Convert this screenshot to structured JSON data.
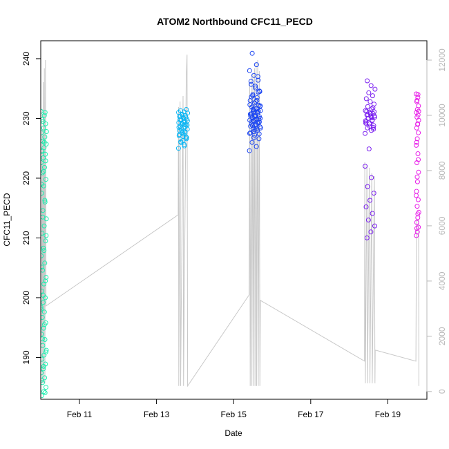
{
  "chart_data": {
    "type": "scatter",
    "title": "ATOM2 Northbound CFC11_PECD",
    "xlabel": "Date",
    "ylabel": "CFC11_PECD",
    "xlim": [
      "2017-02-09T23:55",
      "2017-02-20T00:20"
    ],
    "ylim": [
      183,
      243
    ],
    "y2lim": [
      -280,
      12700
    ],
    "x_ticks": [
      "Feb 11",
      "Feb 13",
      "Feb 15",
      "Feb 17",
      "Feb 19"
    ],
    "x_tick_dates": [
      "2017-02-11",
      "2017-02-13",
      "2017-02-15",
      "2017-02-17",
      "2017-02-19"
    ],
    "y_ticks": [
      190,
      200,
      210,
      220,
      230,
      240
    ],
    "y2_ticks": [
      0,
      2000,
      4000,
      6000,
      8000,
      10000,
      12000
    ],
    "grid": false,
    "legend": "none",
    "series": [
      {
        "marker": "open-circle",
        "axis": "left",
        "clusters": [
          {
            "start": "2017-02-10T00:00",
            "end": "2017-02-10T03:30",
            "color": "#1ef0b0",
            "values": [
              231.2,
              230.5,
              229.8,
              229.1,
              228.4,
              227.6,
              226.9,
              226.2,
              225.7,
              225.1,
              224.6,
              224.0,
              223.4,
              222.6,
              221.8,
              220.9,
              219.8,
              218.7,
              217.5,
              216.0,
              214.6,
              213.2,
              212.0,
              210.8,
              209.5,
              208.3,
              207.0,
              205.8,
              204.6,
              203.4,
              202.3,
              201.1,
              200.0,
              199.2,
              198.4,
              197.6,
              196.7,
              195.8,
              194.9,
              193.9,
              193.0,
              192.0,
              191.2,
              190.4,
              189.7,
              188.9,
              188.1,
              187.4,
              186.6,
              185.8,
              185.0,
              184.3,
              183.6,
              231.0,
              229.5,
              227.8,
              226.0,
              224.5,
              222.9,
              221.1,
              219.0,
              216.3,
              213.5,
              210.4,
              207.9,
              205.1,
              202.8,
              200.4,
              198.1,
              195.5,
              193.1,
              190.9,
              188.5,
              186.2,
              184.1
            ]
          },
          {
            "start": "2017-02-13T13:40",
            "end": "2017-02-13T19:30",
            "color": "#0cb6f4",
            "values": [
              225.0,
              225.6,
              226.1,
              226.6,
              227.0,
              227.3,
              227.6,
              227.9,
              228.2,
              228.4,
              228.7,
              228.9,
              229.1,
              229.3,
              229.5,
              229.7,
              229.9,
              230.1,
              230.3,
              230.5,
              230.7,
              230.9,
              231.1,
              231.3,
              231.5,
              226.3,
              227.1,
              227.8,
              228.3,
              228.9,
              229.4,
              229.8,
              230.2,
              230.6,
              231.0,
              225.4,
              226.0,
              226.8,
              227.4,
              228.0,
              228.6,
              229.2,
              229.6,
              230.0,
              230.4,
              226.9,
              227.7,
              228.5,
              229.0,
              229.8
            ]
          },
          {
            "start": "2017-02-15T09:50",
            "end": "2017-02-15T16:50",
            "color": "#1c46f2",
            "values": [
              224.6,
              225.3,
              226.0,
              226.6,
              227.2,
              227.6,
              228.0,
              228.3,
              228.6,
              228.9,
              229.1,
              229.3,
              229.5,
              229.7,
              229.9,
              230.1,
              230.3,
              230.5,
              230.7,
              230.9,
              231.1,
              231.3,
              231.6,
              231.9,
              232.2,
              232.6,
              233.0,
              233.5,
              234.0,
              234.5,
              235.1,
              235.7,
              236.4,
              237.2,
              238.0,
              239.0,
              240.9,
              227.4,
              228.1,
              228.7,
              229.2,
              229.6,
              230.0,
              230.4,
              230.8,
              231.2,
              231.7,
              232.3,
              233.0,
              233.8,
              234.6,
              235.4,
              236.2,
              237.0,
              227.8,
              228.4,
              229.0,
              229.5,
              229.9,
              230.3,
              230.7,
              231.1,
              231.5,
              232.0,
              232.8,
              233.6,
              234.4,
              226.8,
              227.5,
              228.2,
              228.8,
              229.4,
              229.9,
              230.4,
              230.9,
              231.4,
              232.1
            ]
          },
          {
            "start": "2017-02-18T09:50",
            "end": "2017-02-18T16:10",
            "color": "#7a1ef0",
            "values": [
              227.5,
              228.0,
              228.4,
              228.8,
              229.1,
              229.4,
              229.7,
              230.0,
              230.2,
              230.4,
              230.6,
              230.8,
              231.0,
              231.3,
              231.6,
              232.0,
              232.4,
              232.8,
              233.3,
              233.8,
              234.3,
              234.9,
              235.5,
              236.3,
              228.2,
              228.7,
              229.2,
              229.6,
              230.0,
              230.4,
              230.8,
              231.2,
              231.8,
              224.9,
              222.0,
              220.1,
              218.6,
              217.5,
              216.3,
              215.2,
              214.1,
              213.0,
              212.0,
              211.0,
              210.0,
              228.5,
              229.1,
              229.6,
              230.1,
              230.6,
              231.1
            ]
          },
          {
            "start": "2017-02-19T17:40",
            "end": "2017-02-19T19:20",
            "color": "#e81ee8",
            "values": [
              234.1,
              233.5,
              232.8,
              232.1,
              231.5,
              231.0,
              230.6,
              230.2,
              229.7,
              229.1,
              228.4,
              227.6,
              226.6,
              225.5,
              224.1,
              222.6,
              221.0,
              219.4,
              217.8,
              216.4,
              215.3,
              214.3,
              213.4,
              212.6,
              211.8,
              211.0,
              210.4,
              234.0,
              233.0,
              231.2,
              229.0,
              226.0,
              223.1,
              220.2,
              217.1,
              214.0,
              211.6
            ]
          }
        ]
      },
      {
        "line": "light-grey",
        "axis": "right",
        "points": [
          [
            "2017-02-10T00:30",
            2000
          ],
          [
            "2017-02-10T00:50",
            9500
          ],
          [
            "2017-02-10T01:10",
            300
          ],
          [
            "2017-02-10T01:30",
            11200
          ],
          [
            "2017-02-10T01:50",
            300
          ],
          [
            "2017-02-10T02:10",
            11700
          ],
          [
            "2017-02-10T02:30",
            300
          ],
          [
            "2017-02-10T02:50",
            12000
          ],
          [
            "2017-02-10T03:10",
            3100
          ],
          [
            "2017-02-13T13:30",
            6400
          ],
          [
            "2017-02-13T13:40",
            10300
          ],
          [
            "2017-02-13T13:50",
            200
          ],
          [
            "2017-02-13T14:40",
            10500
          ],
          [
            "2017-02-13T15:00",
            200
          ],
          [
            "2017-02-13T16:30",
            10700
          ],
          [
            "2017-02-13T16:50",
            200
          ],
          [
            "2017-02-13T18:30",
            11400
          ],
          [
            "2017-02-13T19:00",
            12200
          ],
          [
            "2017-02-13T19:20",
            200
          ],
          [
            "2017-02-15T09:40",
            3500
          ],
          [
            "2017-02-15T10:00",
            11200
          ],
          [
            "2017-02-15T10:20",
            200
          ],
          [
            "2017-02-15T11:00",
            11400
          ],
          [
            "2017-02-15T11:20",
            200
          ],
          [
            "2017-02-15T12:00",
            11500
          ],
          [
            "2017-02-15T12:20",
            200
          ],
          [
            "2017-02-15T13:00",
            11700
          ],
          [
            "2017-02-15T13:20",
            200
          ],
          [
            "2017-02-15T14:00",
            11900
          ],
          [
            "2017-02-15T14:20",
            200
          ],
          [
            "2017-02-15T15:00",
            12000
          ],
          [
            "2017-02-15T15:20",
            200
          ],
          [
            "2017-02-15T16:00",
            11600
          ],
          [
            "2017-02-15T16:20",
            200
          ],
          [
            "2017-02-15T16:40",
            3300
          ],
          [
            "2017-02-18T09:30",
            1100
          ],
          [
            "2017-02-18T09:40",
            8300
          ],
          [
            "2017-02-18T10:00",
            300
          ],
          [
            "2017-02-18T11:00",
            8200
          ],
          [
            "2017-02-18T11:20",
            300
          ],
          [
            "2017-02-18T12:30",
            8100
          ],
          [
            "2017-02-18T12:50",
            300
          ],
          [
            "2017-02-18T14:00",
            7900
          ],
          [
            "2017-02-18T14:20",
            300
          ],
          [
            "2017-02-18T15:40",
            7800
          ],
          [
            "2017-02-18T16:00",
            300
          ],
          [
            "2017-02-18T16:10",
            1500
          ],
          [
            "2017-02-19T17:30",
            1100
          ],
          [
            "2017-02-19T17:50",
            6200
          ],
          [
            "2017-02-19T18:20",
            6200
          ],
          [
            "2017-02-19T19:10",
            6200
          ],
          [
            "2017-02-19T19:20",
            200
          ]
        ]
      }
    ]
  }
}
